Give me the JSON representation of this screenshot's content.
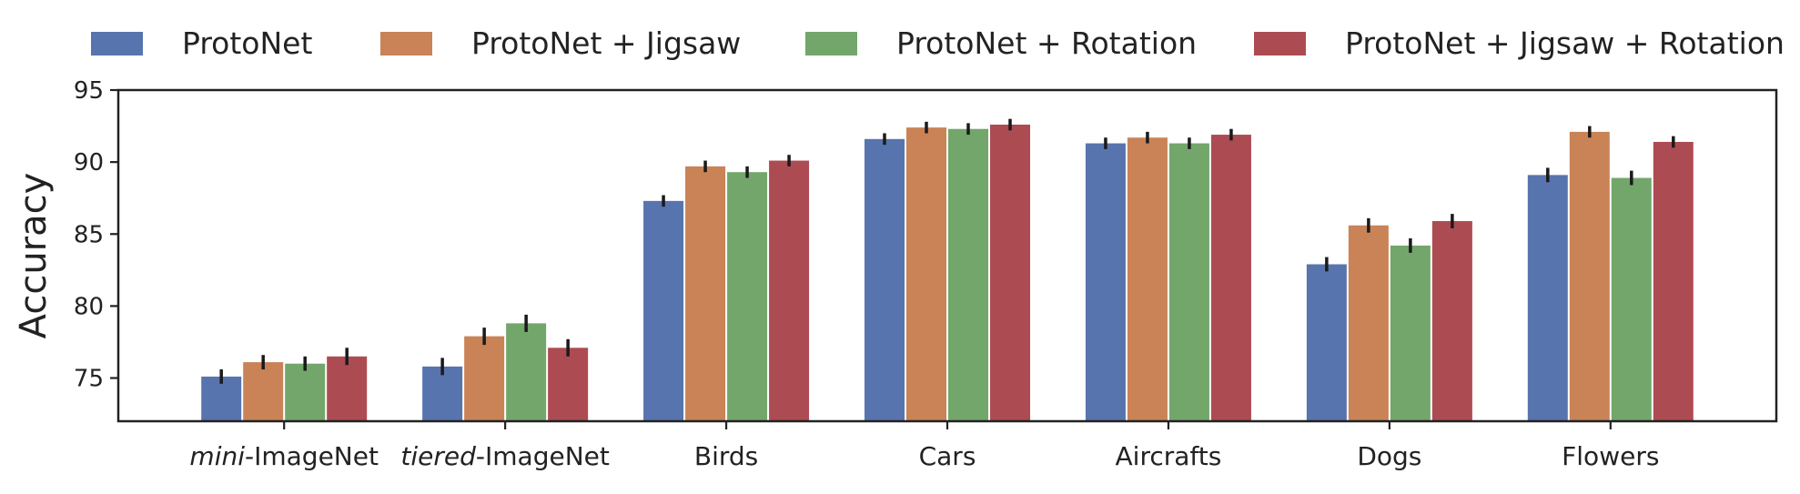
{
  "chart_data": {
    "type": "bar",
    "title": "",
    "xlabel": "",
    "ylabel": "Accuracy",
    "ylim": [
      72,
      95
    ],
    "yticks": [
      75,
      80,
      85,
      90,
      95
    ],
    "grid": false,
    "legend_position": "top",
    "categories": [
      {
        "italic": "mini",
        "rest": "-ImageNet"
      },
      {
        "italic": "tiered",
        "rest": "-ImageNet"
      },
      {
        "italic": "",
        "rest": "Birds"
      },
      {
        "italic": "",
        "rest": "Cars"
      },
      {
        "italic": "",
        "rest": "Aircrafts"
      },
      {
        "italic": "",
        "rest": "Dogs"
      },
      {
        "italic": "",
        "rest": "Flowers"
      }
    ],
    "series": [
      {
        "name": "ProtoNet",
        "color": "#5874ae",
        "values": [
          75.1,
          75.8,
          87.3,
          91.6,
          91.3,
          82.9,
          89.1
        ],
        "errors": [
          0.5,
          0.6,
          0.4,
          0.4,
          0.4,
          0.5,
          0.5
        ]
      },
      {
        "name": "ProtoNet + Jigsaw",
        "color": "#c98356",
        "values": [
          76.1,
          77.9,
          89.7,
          92.4,
          91.7,
          85.6,
          92.1
        ],
        "errors": [
          0.5,
          0.6,
          0.4,
          0.4,
          0.4,
          0.5,
          0.4
        ]
      },
      {
        "name": "ProtoNet + Rotation",
        "color": "#73a66b",
        "values": [
          76.0,
          78.8,
          89.3,
          92.3,
          91.3,
          84.2,
          88.9
        ],
        "errors": [
          0.5,
          0.6,
          0.4,
          0.4,
          0.4,
          0.5,
          0.5
        ]
      },
      {
        "name": "ProtoNet + Jigsaw + Rotation",
        "color": "#ad4b53",
        "values": [
          76.5,
          77.1,
          90.1,
          92.6,
          91.9,
          85.9,
          91.4
        ],
        "errors": [
          0.6,
          0.6,
          0.4,
          0.4,
          0.4,
          0.5,
          0.4
        ]
      }
    ]
  }
}
